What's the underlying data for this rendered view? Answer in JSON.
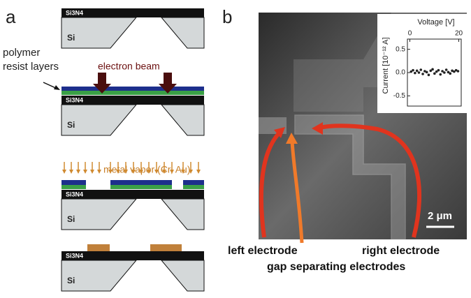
{
  "panel_a": {
    "label": "a",
    "steps": [
      {
        "film": "Si3N4",
        "substrate": "Si"
      },
      {
        "film": "Si3N4",
        "substrate": "Si",
        "resist_label": [
          "polymer",
          "resist layers"
        ],
        "beam_label": "electron beam"
      },
      {
        "film": "Si3N4",
        "substrate": "Si",
        "vapor_label": "metal vapor (Cr, Au)"
      },
      {
        "film": "Si3N4",
        "substrate": "Si"
      }
    ]
  },
  "panel_b": {
    "label": "b",
    "scale_bar": "2 μm",
    "annotations": {
      "left": "left electrode",
      "right": "right electrode",
      "gap": "gap separating electrodes"
    },
    "inset": {
      "type": "scatter",
      "x_label": "Voltage [V]",
      "y_label": "Current [10⁻¹² A]",
      "x": [
        0.5,
        1.3,
        2.1,
        2.9,
        3.7,
        4.5,
        5.3,
        6.1,
        6.9,
        7.7,
        8.5,
        9.3,
        10.1,
        10.9,
        11.7,
        12.5,
        13.3,
        14.1,
        14.9,
        15.7,
        16.5,
        17.3,
        18.1,
        18.9,
        19.7
      ],
      "values": [
        0.02,
        0.05,
        -0.01,
        0.04,
        0.0,
        0.06,
        -0.03,
        0.03,
        0.01,
        -0.05,
        0.04,
        0.07,
        -0.02,
        0.02,
        0.05,
        -0.04,
        0.03,
        0.0,
        0.06,
        0.01,
        -0.02,
        0.04,
        0.02,
        0.05,
        0.03
      ],
      "xlim": [
        -1,
        21
      ],
      "ylim": [
        -0.72,
        0.72
      ],
      "xticks": [
        0,
        20
      ],
      "yticks": [
        0.5,
        {
          "value": 0,
          "label": "0.0"
        },
        -0.5
      ],
      "color": "#222222"
    }
  }
}
